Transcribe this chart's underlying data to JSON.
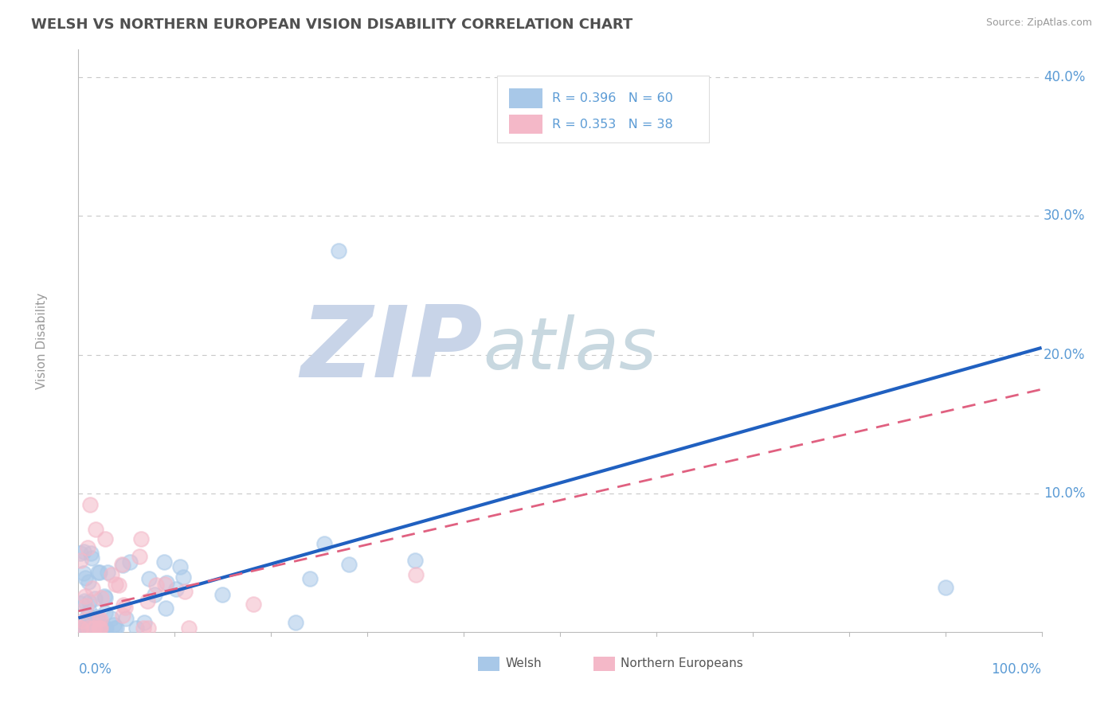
{
  "title": "WELSH VS NORTHERN EUROPEAN VISION DISABILITY CORRELATION CHART",
  "source": "Source: ZipAtlas.com",
  "ylabel": "Vision Disability",
  "welsh_R": 0.396,
  "welsh_N": 60,
  "ne_R": 0.353,
  "ne_N": 38,
  "welsh_color": "#a8c8e8",
  "ne_color": "#f4b8c8",
  "welsh_line_color": "#2060c0",
  "ne_line_color": "#e06080",
  "title_color": "#505050",
  "axis_label_color": "#5b9bd5",
  "legend_text_color": "#5b9bd5",
  "watermark_zip_color": "#c8d4e8",
  "watermark_atlas_color": "#c8d8e0",
  "watermark_text": "ZIPatlas",
  "background_color": "#ffffff",
  "grid_color": "#c8c8c8",
  "xlim": [
    0,
    100
  ],
  "ylim": [
    0,
    42
  ],
  "yticks": [
    10,
    20,
    30,
    40
  ],
  "ytick_labels": [
    "10.0%",
    "20.0%",
    "30.0%",
    "40.0%"
  ],
  "xtick_labels": [
    "0.0%",
    "100.0%"
  ],
  "welsh_line_x0": 0,
  "welsh_line_y0": 1.0,
  "welsh_line_x1": 100,
  "welsh_line_y1": 20.5,
  "ne_line_x0": 0,
  "ne_line_y0": 1.5,
  "ne_line_x1": 100,
  "ne_line_y1": 17.5
}
